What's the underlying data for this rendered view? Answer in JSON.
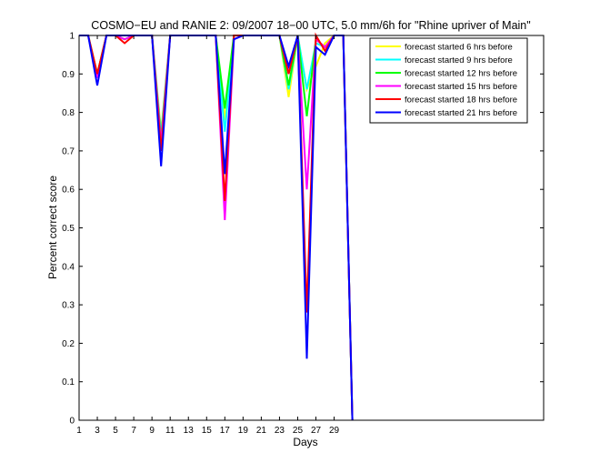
{
  "chart_data": {
    "type": "line",
    "title": "COSMO−EU and RANIE 2: 09/2007 18−00 UTC, 5.0 mm/6h for \"Rhine upriver of Main\"",
    "xlabel": "Days",
    "ylabel": "Percent correct score",
    "xlim": [
      1,
      52
    ],
    "ylim": [
      0,
      1
    ],
    "xticks": [
      1,
      3,
      5,
      7,
      9,
      11,
      13,
      15,
      17,
      19,
      21,
      23,
      25,
      27,
      29
    ],
    "yticks": [
      0,
      0.1,
      0.2,
      0.3,
      0.4,
      0.5,
      0.6,
      0.7,
      0.8,
      0.9,
      1
    ],
    "ytick_labels": [
      "0",
      "0.1",
      "0.2",
      "0.3",
      "0.4",
      "0.5",
      "0.6",
      "0.7",
      "0.8",
      "0.9",
      "1"
    ],
    "grid": false,
    "legend_position": "top-right",
    "x": [
      1,
      2,
      3,
      4,
      5,
      6,
      7,
      8,
      9,
      10,
      11,
      12,
      13,
      14,
      15,
      16,
      17,
      18,
      19,
      20,
      21,
      22,
      23,
      24,
      25,
      26,
      27,
      28,
      29,
      30,
      31
    ],
    "series": [
      {
        "name": "forecast started 6 hrs before",
        "color": "#ffff00",
        "values": [
          1,
          1,
          0.9,
          1,
          1,
          0.99,
          1,
          1,
          1,
          0.75,
          1,
          1,
          1,
          1,
          1,
          1,
          0.78,
          1,
          1,
          1,
          1,
          1,
          1,
          0.84,
          1,
          0.86,
          0.92,
          0.98,
          1,
          1,
          0
        ]
      },
      {
        "name": "forecast started 9 hrs before",
        "color": "#00ffff",
        "values": [
          1,
          1,
          0.89,
          1,
          1,
          0.99,
          1,
          1,
          1,
          0.74,
          1,
          1,
          1,
          1,
          1,
          1,
          0.75,
          1,
          1,
          1,
          1,
          1,
          1,
          0.86,
          1,
          0.86,
          0.98,
          0.97,
          1,
          1,
          0
        ]
      },
      {
        "name": "forecast started 12 hrs before",
        "color": "#00ff00",
        "values": [
          1,
          1,
          0.9,
          1,
          1,
          0.99,
          1,
          1,
          1,
          0.73,
          1,
          1,
          1,
          1,
          1,
          1,
          0.81,
          1,
          1,
          1,
          1,
          1,
          1,
          0.87,
          1,
          0.79,
          0.99,
          0.97,
          1,
          1,
          0
        ]
      },
      {
        "name": "forecast started 15 hrs before",
        "color": "#ff00ff",
        "values": [
          1,
          1,
          0.89,
          1,
          1,
          0.99,
          1,
          1,
          1,
          0.72,
          1,
          1,
          1,
          1,
          1,
          1,
          0.52,
          0.99,
          1,
          1,
          1,
          1,
          1,
          0.9,
          1,
          0.6,
          0.99,
          0.97,
          1,
          1,
          0
        ]
      },
      {
        "name": "forecast started 18 hrs before",
        "color": "#ff0000",
        "values": [
          1,
          1,
          0.9,
          1,
          1,
          0.98,
          1,
          1,
          1,
          0.7,
          1,
          1,
          1,
          1,
          1,
          1,
          0.57,
          1,
          1,
          1,
          1,
          1,
          1,
          0.9,
          1,
          0.28,
          1,
          0.96,
          1,
          1,
          0
        ]
      },
      {
        "name": "forecast started 21 hrs before",
        "color": "#0000ff",
        "values": [
          1,
          1,
          0.87,
          1,
          1,
          1,
          1,
          1,
          1,
          0.66,
          1,
          1,
          1,
          1,
          1,
          1,
          0.64,
          0.99,
          1,
          1,
          1,
          1,
          1,
          0.92,
          1,
          0.16,
          0.97,
          0.95,
          1,
          1,
          0
        ]
      }
    ]
  }
}
